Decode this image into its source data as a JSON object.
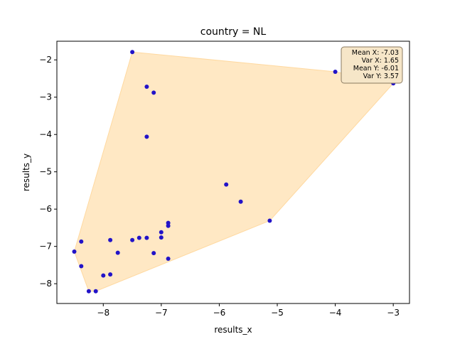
{
  "chart_data": {
    "type": "scatter",
    "title": "country = NL",
    "xlabel": "results_x",
    "ylabel": "results_y",
    "xlim": [
      -8.8,
      -2.72
    ],
    "ylim": [
      -8.53,
      -1.5
    ],
    "xticks": [
      -8,
      -7,
      -6,
      -5,
      -4,
      -3
    ],
    "yticks": [
      -8,
      -7,
      -6,
      -5,
      -4,
      -3,
      -2
    ],
    "xtick_labels": [
      "−8",
      "−7",
      "−6",
      "−5",
      "−4",
      "−3"
    ],
    "ytick_labels": [
      "−8",
      "−7",
      "−6",
      "−5",
      "−4",
      "−3",
      "−2"
    ],
    "grid": false,
    "colors": {
      "points": "#2213c8",
      "hull_fill": "#ffe8c4",
      "hull_edge": "#ffd9a0",
      "stats_box_fill": "#f6e6c8",
      "stats_box_edge": "#8a7a60"
    },
    "points": [
      {
        "x": -7.5,
        "y": -1.79
      },
      {
        "x": -7.25,
        "y": -2.72
      },
      {
        "x": -7.13,
        "y": -2.88
      },
      {
        "x": -7.25,
        "y": -4.06
      },
      {
        "x": -5.88,
        "y": -5.34
      },
      {
        "x": -5.63,
        "y": -5.8
      },
      {
        "x": -5.13,
        "y": -6.31
      },
      {
        "x": -4.0,
        "y": -2.32
      },
      {
        "x": -3.0,
        "y": -2.63
      },
      {
        "x": -6.88,
        "y": -6.37
      },
      {
        "x": -6.88,
        "y": -6.45
      },
      {
        "x": -7.0,
        "y": -6.62
      },
      {
        "x": -7.0,
        "y": -6.76
      },
      {
        "x": -7.25,
        "y": -6.77
      },
      {
        "x": -7.38,
        "y": -6.77
      },
      {
        "x": -7.5,
        "y": -6.83
      },
      {
        "x": -7.88,
        "y": -6.83
      },
      {
        "x": -8.38,
        "y": -6.87
      },
      {
        "x": -8.5,
        "y": -7.14
      },
      {
        "x": -7.75,
        "y": -7.17
      },
      {
        "x": -7.13,
        "y": -7.18
      },
      {
        "x": -6.88,
        "y": -7.33
      },
      {
        "x": -8.38,
        "y": -7.53
      },
      {
        "x": -7.88,
        "y": -7.75
      },
      {
        "x": -8.0,
        "y": -7.78
      },
      {
        "x": -8.25,
        "y": -8.2
      },
      {
        "x": -8.13,
        "y": -8.2
      }
    ],
    "hull": [
      {
        "x": -7.5,
        "y": -1.79
      },
      {
        "x": -4.0,
        "y": -2.32
      },
      {
        "x": -3.0,
        "y": -2.63
      },
      {
        "x": -5.13,
        "y": -6.31
      },
      {
        "x": -8.13,
        "y": -8.2
      },
      {
        "x": -8.25,
        "y": -8.2
      },
      {
        "x": -8.5,
        "y": -7.14
      }
    ],
    "stats": {
      "mean_x": "Mean X: -7.03",
      "var_x": "Var X: 1.65",
      "mean_y": "Mean Y: -6.01",
      "var_y": "Var Y: 3.57"
    }
  }
}
